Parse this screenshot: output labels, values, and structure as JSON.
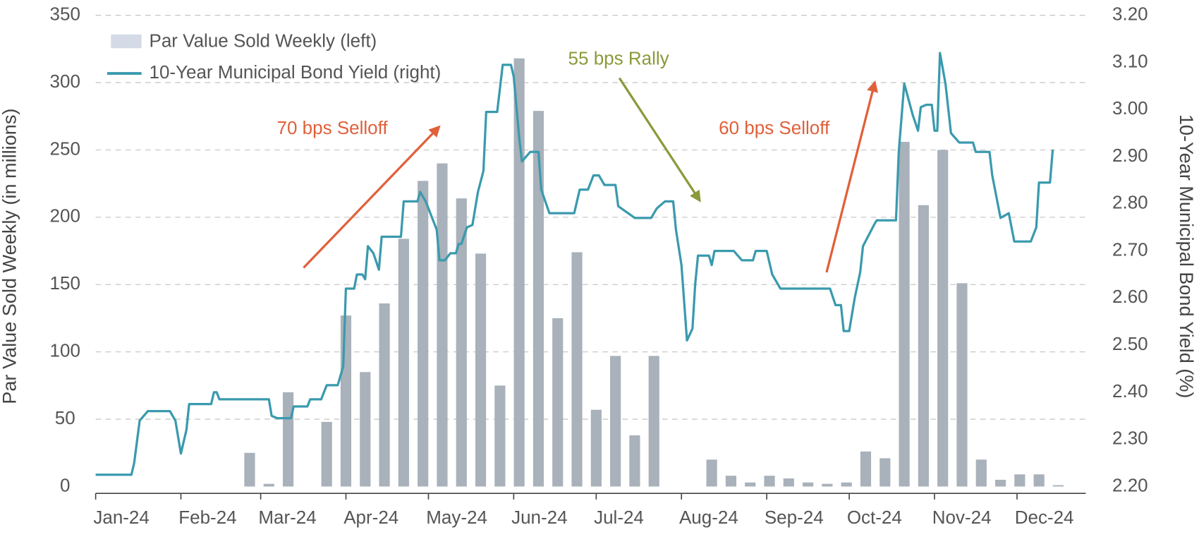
{
  "chart_data": {
    "type": "combo",
    "y_label": "Par Value Sold Weekly (in millions)",
    "y2_label": "10-Year Municipal Bond Yield (%)",
    "xlim": [
      0,
      360
    ],
    "xticks": [
      {
        "value": 0,
        "label": "Jan-24"
      },
      {
        "value": 31,
        "label": "Feb-24"
      },
      {
        "value": 60,
        "label": "Mar-24"
      },
      {
        "value": 91,
        "label": "Apr-24"
      },
      {
        "value": 121,
        "label": "May-24"
      },
      {
        "value": 152,
        "label": "Jun-24"
      },
      {
        "value": 182,
        "label": "Jul-24"
      },
      {
        "value": 213,
        "label": "Aug-24"
      },
      {
        "value": 244,
        "label": "Sep-24"
      },
      {
        "value": 274,
        "label": "Oct-24"
      },
      {
        "value": 305,
        "label": "Nov-24"
      },
      {
        "value": 335,
        "label": "Dec-24"
      }
    ],
    "ylim": [
      0,
      350
    ],
    "yticks": [
      0,
      50,
      100,
      150,
      200,
      250,
      300,
      350
    ],
    "y2lim": [
      2.2,
      3.2
    ],
    "y2ticks": [
      {
        "value": 2.2,
        "label": "2.20"
      },
      {
        "value": 2.3,
        "label": "2.30"
      },
      {
        "value": 2.4,
        "label": "2.40"
      },
      {
        "value": 2.5,
        "label": "2.50"
      },
      {
        "value": 2.6,
        "label": "2.60"
      },
      {
        "value": 2.7,
        "label": "2.70"
      },
      {
        "value": 2.8,
        "label": "2.80"
      },
      {
        "value": 2.9,
        "label": "2.90"
      },
      {
        "value": 3.0,
        "label": "3.00"
      },
      {
        "value": 3.1,
        "label": "3.10"
      },
      {
        "value": 3.2,
        "label": "3.20"
      }
    ],
    "grid": true,
    "series": [
      {
        "name": "Par Value Sold Weekly (left)",
        "type": "bar",
        "color": "#a9b1ba",
        "x": [
          56,
          63,
          70,
          84,
          91,
          98,
          105,
          112,
          119,
          126,
          133,
          140,
          147,
          154,
          161,
          168,
          175,
          182,
          189,
          196,
          203,
          224,
          231,
          238,
          245,
          252,
          259,
          266,
          273,
          280,
          287,
          294,
          301,
          308,
          315,
          322,
          329,
          336,
          343,
          350
        ],
        "values": [
          25,
          2,
          70,
          48,
          127,
          85,
          136,
          184,
          227,
          240,
          214,
          173,
          75,
          318,
          279,
          125,
          174,
          57,
          97,
          38,
          97,
          20,
          8,
          3,
          8,
          6,
          3,
          2,
          3,
          26,
          21,
          256,
          209,
          250,
          151,
          20,
          5,
          9,
          9,
          1
        ]
      },
      {
        "name": "10-Year Municipal Bond Yield (right)",
        "type": "line",
        "color": "#3a9aae",
        "axis": "y2",
        "x": [
          0,
          13,
          14,
          16,
          19,
          27,
          29,
          31,
          33,
          34,
          42,
          43,
          44,
          45,
          63,
          64,
          66,
          71,
          72,
          77,
          78,
          82,
          84,
          88,
          90,
          91,
          94,
          95,
          97,
          98,
          99,
          101,
          103,
          104,
          111,
          112,
          117,
          118,
          120,
          124,
          125,
          127,
          129,
          131,
          132,
          133,
          135,
          137,
          139,
          141,
          142,
          146,
          148,
          151,
          152,
          154,
          155,
          158,
          161,
          162,
          165,
          174,
          176,
          179,
          181,
          183,
          185,
          189,
          190,
          196,
          202,
          204,
          207,
          210,
          211,
          213,
          215,
          217,
          218,
          219,
          223,
          224,
          225,
          232,
          235,
          239,
          240,
          244,
          246,
          249,
          267,
          269,
          271,
          272,
          274,
          276,
          278,
          279,
          283,
          284,
          291,
          292,
          294,
          297,
          299,
          300,
          302,
          304,
          305,
          306,
          307,
          309,
          311,
          314,
          319,
          320,
          325,
          326,
          329,
          332,
          334,
          340,
          342,
          343,
          347,
          348
        ],
        "values": [
          2.225,
          2.225,
          2.25,
          2.34,
          2.36,
          2.36,
          2.34,
          2.27,
          2.32,
          2.375,
          2.375,
          2.4,
          2.4,
          2.385,
          2.385,
          2.35,
          2.345,
          2.345,
          2.37,
          2.37,
          2.385,
          2.385,
          2.415,
          2.415,
          2.455,
          2.62,
          2.62,
          2.65,
          2.65,
          2.64,
          2.71,
          2.695,
          2.66,
          2.73,
          2.73,
          2.805,
          2.805,
          2.825,
          2.805,
          2.745,
          2.68,
          2.68,
          2.695,
          2.695,
          2.715,
          2.715,
          2.75,
          2.755,
          2.825,
          2.87,
          2.995,
          2.995,
          3.095,
          3.095,
          3.07,
          2.94,
          2.89,
          2.91,
          2.91,
          2.83,
          2.78,
          2.78,
          2.83,
          2.83,
          2.86,
          2.86,
          2.84,
          2.84,
          2.795,
          2.77,
          2.77,
          2.79,
          2.805,
          2.805,
          2.745,
          2.67,
          2.51,
          2.535,
          2.63,
          2.69,
          2.69,
          2.67,
          2.7,
          2.7,
          2.68,
          2.68,
          2.7,
          2.7,
          2.65,
          2.62,
          2.62,
          2.585,
          2.585,
          2.53,
          2.53,
          2.6,
          2.655,
          2.71,
          2.755,
          2.765,
          2.765,
          2.91,
          3.055,
          2.99,
          2.955,
          3.005,
          3.01,
          3.01,
          2.955,
          2.955,
          3.12,
          3.055,
          2.95,
          2.93,
          2.93,
          2.91,
          2.91,
          2.86,
          2.77,
          2.78,
          2.72,
          2.72,
          2.75,
          2.845,
          2.845,
          2.915
        ]
      }
    ],
    "annotations": [
      "70 bps Selloff",
      "55 bps Rally",
      "60 bps Selloff"
    ]
  }
}
